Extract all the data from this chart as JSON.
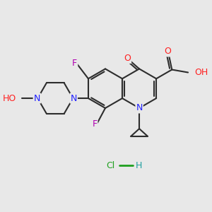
{
  "background_color": "#e8e8e8",
  "bond_color": "#2d2d2d",
  "atom_colors": {
    "N": "#2020ff",
    "O": "#ff2020",
    "F": "#b000b0",
    "H": "#20a0a0",
    "Cl": "#20a020",
    "C": "#2d2d2d"
  },
  "figsize": [
    3.0,
    3.0
  ],
  "dpi": 100
}
